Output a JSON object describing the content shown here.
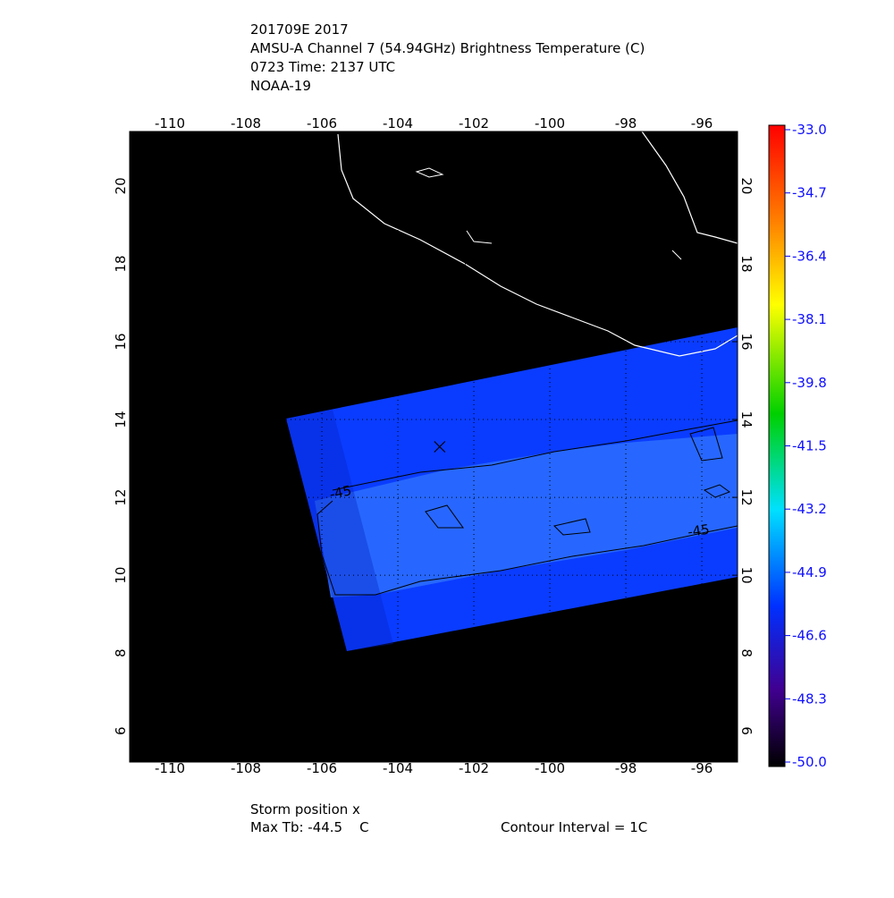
{
  "header": {
    "lines": [
      "201709E 2017",
      "AMSU-A Channel 7 (54.94GHz) Brightness Temperature (C)",
      "0723 Time: 2137 UTC",
      "NOAA-19"
    ]
  },
  "map": {
    "xlim": [
      -111.06,
      -95.06
    ],
    "ylim": [
      5.2,
      21.4
    ],
    "lon_ticks": [
      -110,
      -108,
      -106,
      -104,
      -102,
      -100,
      -98,
      -96
    ],
    "lat_ticks": [
      6,
      8,
      10,
      12,
      14,
      16,
      18,
      20
    ],
    "storm": {
      "lon": -102.9,
      "lat": 13.3
    },
    "contour_label": "-45"
  },
  "colorbar": {
    "lim": [
      -50,
      -33
    ],
    "ticks": [
      {
        "value": -33,
        "label": "-33.0"
      },
      -34.7,
      -36.4,
      -38.1,
      -39.8,
      -41.5,
      -43.2,
      -44.9,
      -46.6,
      -48.3,
      {
        "value": -50,
        "label": "-50.0"
      }
    ]
  },
  "footer": {
    "storm": "Storm position x",
    "max_tb": "Max Tb: -44.5    C",
    "contour_interval": "Contour Interval = 1C"
  }
}
